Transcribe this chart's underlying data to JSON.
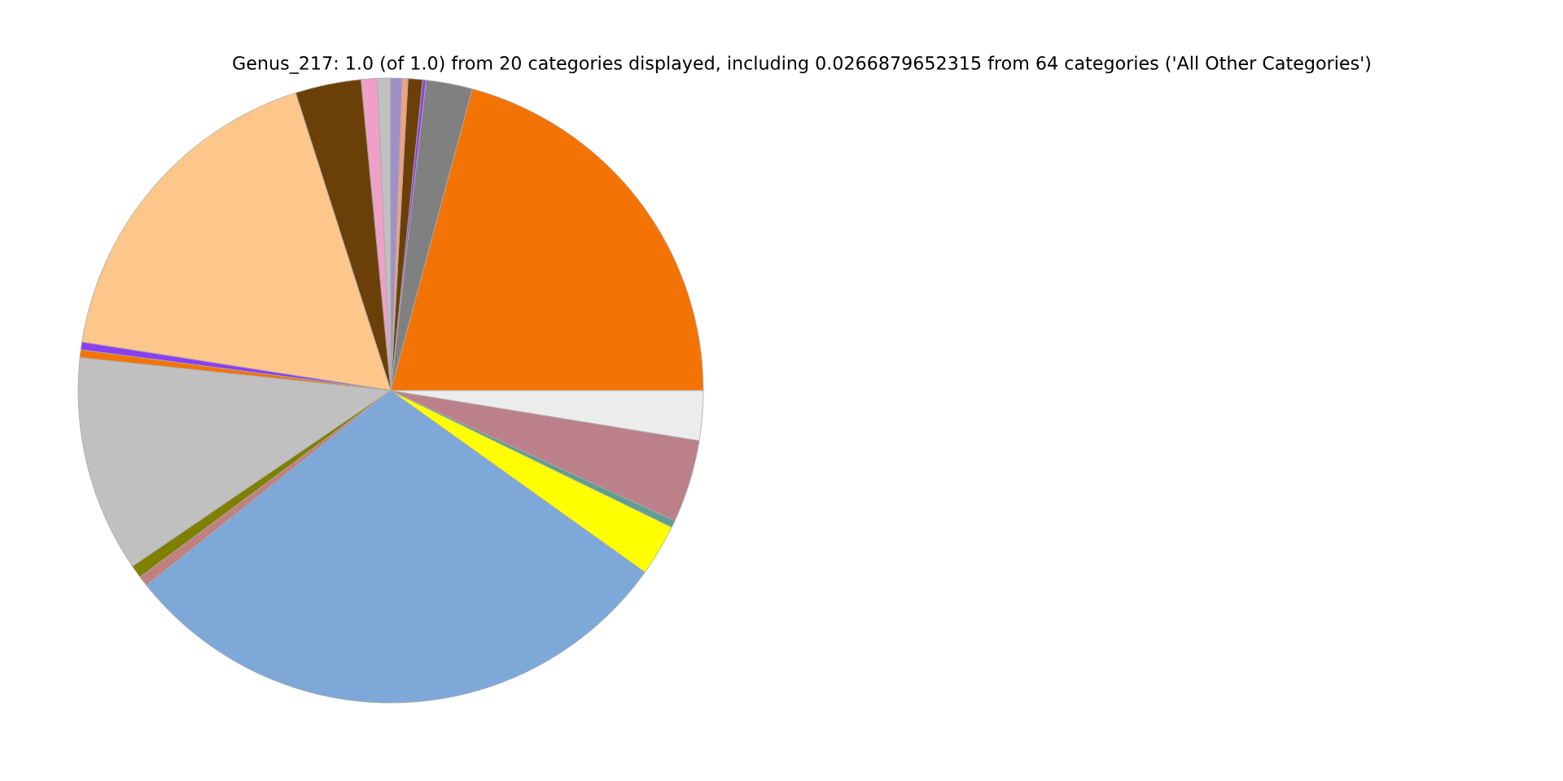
{
  "chart_data": {
    "type": "pie",
    "title": "Genus_217: 1.0 (of 1.0) from 20 categories displayed, including 0.0266879652315 from 64 categories ('All Other Categories')",
    "categories": [
      null,
      null,
      null,
      null,
      null,
      null,
      null,
      null,
      null,
      null,
      null,
      null,
      null,
      null,
      null,
      null,
      null,
      null,
      null,
      null
    ],
    "values": [
      20.8,
      2.4,
      0.17,
      0.75,
      0.3,
      0.6,
      0.67,
      0.83,
      3.4,
      17.6,
      0.4,
      0.4,
      11.2,
      0.67,
      0.53,
      29.4,
      2.67,
      0.36,
      4.28,
      2.57
    ],
    "colors": [
      "#f37304",
      "#808080",
      "#8b3ff0",
      "#6b4008",
      "#f4a080",
      "#a090c8",
      "#c0c0c0",
      "#f0a0c8",
      "#6b4008",
      "#fdc68a",
      "#8b3ff0",
      "#f37304",
      "#c0c0c0",
      "#808000",
      "#c08080",
      "#7ea8d8",
      "#ffff00",
      "#5f9e90",
      "#bc808a",
      "#ececec"
    ]
  }
}
